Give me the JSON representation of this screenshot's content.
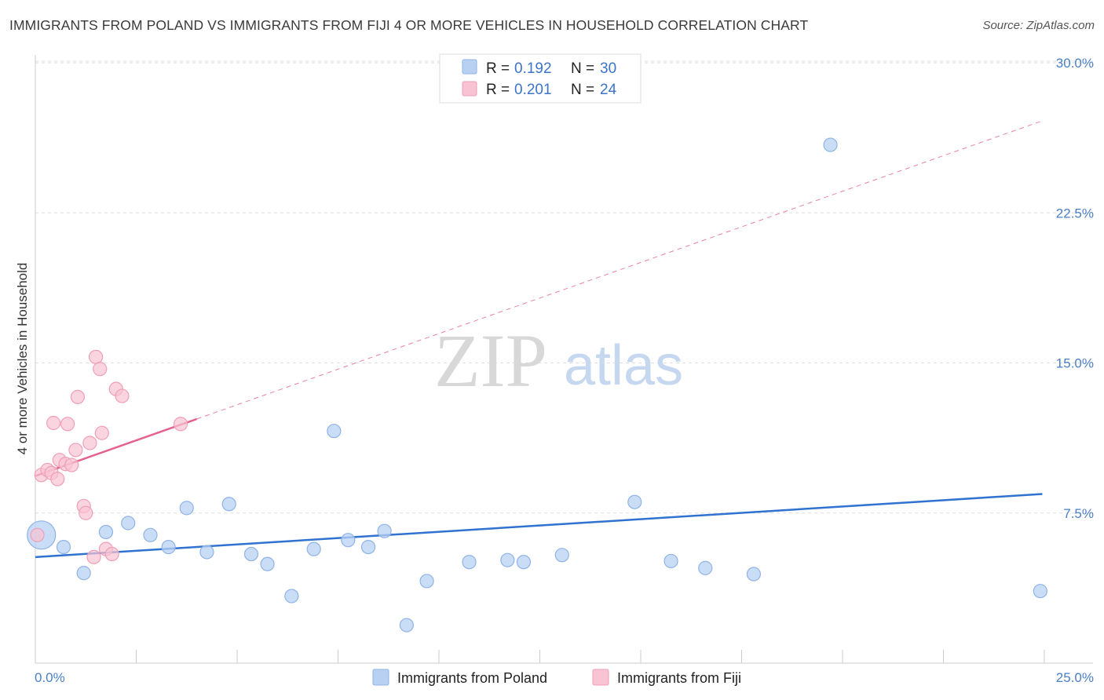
{
  "title": "IMMIGRANTS FROM POLAND VS IMMIGRANTS FROM FIJI 4 OR MORE VEHICLES IN HOUSEHOLD CORRELATION CHART",
  "source": "Source: ZipAtlas.com",
  "watermark": {
    "zip": "ZIP",
    "atlas": "atlas"
  },
  "legend_top": {
    "r_label": "R =",
    "n_label": "N =",
    "entries": [
      {
        "name": "Immigrants from Poland",
        "r": "0.192",
        "n": "30"
      },
      {
        "name": "Immigrants from Fiji",
        "r": "0.201",
        "n": "24"
      }
    ]
  },
  "colors": {
    "poland_fill": "#b8d1f3",
    "poland_stroke": "#8fb3e6",
    "poland_line": "#2f72cf",
    "fiji_fill": "#f8c3d3",
    "fiji_stroke": "#ef9fb8",
    "fiji_line": "#e5628d",
    "grid": "#dddddd",
    "tick_text": "#4a7fc8"
  },
  "chart_data": {
    "type": "scatter",
    "title": "IMMIGRANTS FROM POLAND VS IMMIGRANTS FROM FIJI 4 OR MORE VEHICLES IN HOUSEHOLD CORRELATION CHART",
    "xlabel": "",
    "ylabel": "4 or more Vehicles in Household",
    "xlim": [
      0,
      25
    ],
    "ylim": [
      0,
      30
    ],
    "x_tick_labels": [
      "0.0%",
      "25.0%"
    ],
    "y_ticks": [
      7.5,
      15.0,
      22.5,
      30.0
    ],
    "y_tick_labels": [
      "7.5%",
      "15.0%",
      "22.5%",
      "30.0%"
    ],
    "grid": true,
    "legend_position": "top-center",
    "series": [
      {
        "name": "Immigrants from Poland",
        "points": [
          [
            0.15,
            6.4
          ],
          [
            0.7,
            5.8
          ],
          [
            1.2,
            4.5
          ],
          [
            1.75,
            6.55
          ],
          [
            2.3,
            7.0
          ],
          [
            2.85,
            6.4
          ],
          [
            3.3,
            5.8
          ],
          [
            3.75,
            7.75
          ],
          [
            4.25,
            5.55
          ],
          [
            4.8,
            7.95
          ],
          [
            5.35,
            5.45
          ],
          [
            5.75,
            4.95
          ],
          [
            6.35,
            3.35
          ],
          [
            6.9,
            5.7
          ],
          [
            7.4,
            11.6
          ],
          [
            7.75,
            6.15
          ],
          [
            8.25,
            5.8
          ],
          [
            8.65,
            6.6
          ],
          [
            9.2,
            1.9
          ],
          [
            9.7,
            4.1
          ],
          [
            10.75,
            5.05
          ],
          [
            11.7,
            5.15
          ],
          [
            12.1,
            5.05
          ],
          [
            13.05,
            5.4
          ],
          [
            14.85,
            8.05
          ],
          [
            15.75,
            5.1
          ],
          [
            16.6,
            4.75
          ],
          [
            17.8,
            4.45
          ],
          [
            19.7,
            25.9
          ],
          [
            24.9,
            3.6
          ]
        ],
        "trend": {
          "x": [
            0,
            24.95
          ],
          "y": [
            5.3,
            8.45
          ]
        }
      },
      {
        "name": "Immigrants from Fiji",
        "points": [
          [
            0.05,
            6.4
          ],
          [
            0.15,
            9.4
          ],
          [
            0.3,
            9.65
          ],
          [
            0.4,
            9.5
          ],
          [
            0.45,
            12.0
          ],
          [
            0.55,
            9.2
          ],
          [
            0.6,
            10.15
          ],
          [
            0.75,
            9.95
          ],
          [
            0.8,
            11.95
          ],
          [
            0.9,
            9.9
          ],
          [
            1.0,
            10.65
          ],
          [
            1.05,
            13.3
          ],
          [
            1.2,
            7.85
          ],
          [
            1.25,
            7.5
          ],
          [
            1.35,
            11.0
          ],
          [
            1.45,
            5.3
          ],
          [
            1.5,
            15.3
          ],
          [
            1.6,
            14.7
          ],
          [
            1.65,
            11.5
          ],
          [
            1.75,
            5.7
          ],
          [
            1.9,
            5.45
          ],
          [
            2.0,
            13.7
          ],
          [
            2.15,
            13.35
          ],
          [
            3.6,
            11.95
          ]
        ],
        "trend": {
          "x": [
            0,
            4.0
          ],
          "y": [
            9.35,
            12.2
          ]
        },
        "trend_extension": {
          "x": [
            4.0,
            24.95
          ],
          "y": [
            12.2,
            27.1
          ]
        }
      }
    ]
  },
  "bottom_legend": [
    "Immigrants from Poland",
    "Immigrants from Fiji"
  ]
}
